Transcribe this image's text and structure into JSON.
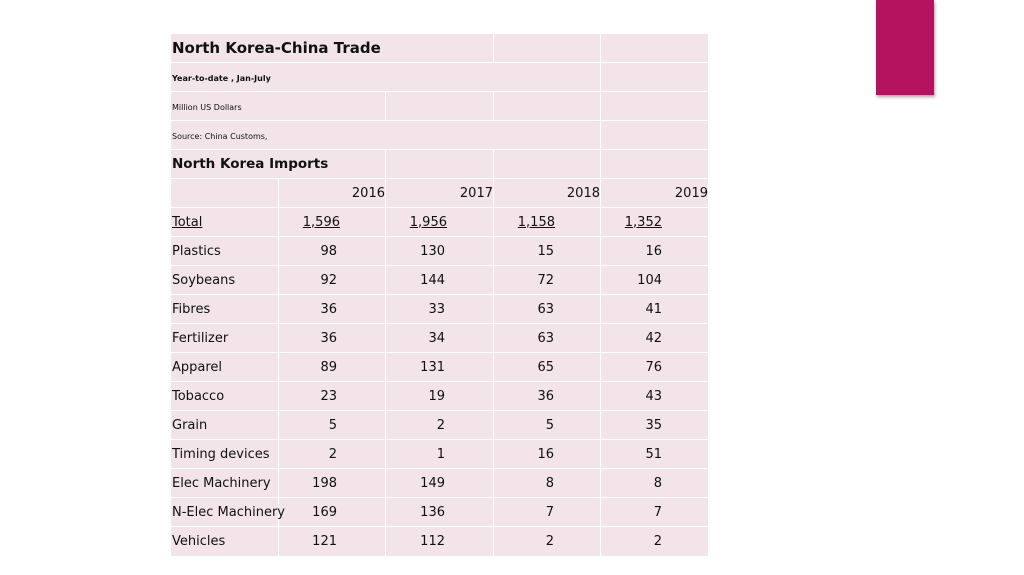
{
  "table": {
    "title": "North Korea-China Trade",
    "subtitle": "Year-to-date , Jan-July",
    "units": "Million US Dollars",
    "source": "Source:  China Customs,",
    "section": "North Korea Imports",
    "years": [
      "2016",
      "2017",
      "2018",
      "2019"
    ],
    "total": {
      "label": "Total",
      "values": [
        "1,596",
        "1,956",
        "1,158",
        "1,352"
      ]
    },
    "rows": [
      {
        "label": "Plastics",
        "values": [
          "98",
          "130",
          "15",
          "16"
        ]
      },
      {
        "label": "Soybeans",
        "values": [
          "92",
          "144",
          "72",
          "104"
        ]
      },
      {
        "label": "Fibres",
        "values": [
          "36",
          "33",
          "63",
          "41"
        ]
      },
      {
        "label": "Fertilizer",
        "values": [
          "36",
          "34",
          "63",
          "42"
        ]
      },
      {
        "label": "Apparel",
        "values": [
          "89",
          "131",
          "65",
          "76"
        ]
      },
      {
        "label": "Tobacco",
        "values": [
          "23",
          "19",
          "36",
          "43"
        ]
      },
      {
        "label": "Grain",
        "values": [
          "5",
          "2",
          "5",
          "35"
        ]
      },
      {
        "label": "Timing devices",
        "values": [
          "2",
          "1",
          "16",
          "51"
        ]
      },
      {
        "label": "Elec Machinery",
        "values": [
          "198",
          "149",
          "8",
          "8"
        ]
      },
      {
        "label": "N-Elec Machinery",
        "values": [
          "169",
          "136",
          "7",
          "7"
        ]
      },
      {
        "label": "Vehicles",
        "values": [
          "121",
          "112",
          "2",
          "2"
        ]
      }
    ]
  },
  "colors": {
    "accent": "#b5135f",
    "table_fill": "#f2e4e8"
  }
}
